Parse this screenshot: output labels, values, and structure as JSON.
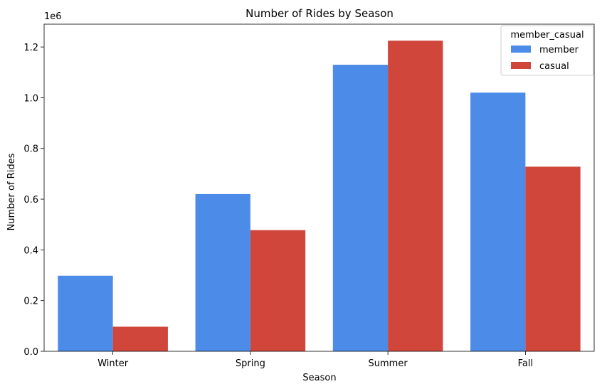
{
  "chart_data": {
    "type": "bar",
    "title": "Number of Rides by Season",
    "xlabel": "Season",
    "ylabel": "Number of Rides",
    "y_offset_label": "1e6",
    "categories": [
      "Winter",
      "Spring",
      "Summer",
      "Fall"
    ],
    "series": [
      {
        "name": "member",
        "values": [
          298000,
          620000,
          1130000,
          1020000
        ],
        "color": "#4c8be8"
      },
      {
        "name": "casual",
        "values": [
          97000,
          478000,
          1225000,
          728000
        ],
        "color": "#d0463b"
      }
    ],
    "ylim": [
      0,
      1290000
    ],
    "yticks": [
      0,
      200000,
      400000,
      600000,
      800000,
      1000000,
      1200000
    ],
    "ytick_labels": [
      "0.0",
      "0.2",
      "0.4",
      "0.6",
      "0.8",
      "1.0",
      "1.2"
    ],
    "legend": {
      "title": "member_casual",
      "position": "top-right"
    },
    "grid": false
  }
}
